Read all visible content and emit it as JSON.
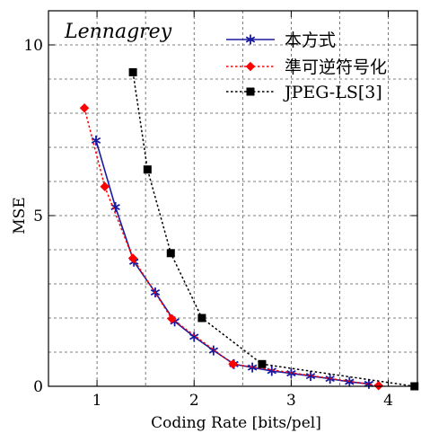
{
  "chart_data": {
    "type": "line",
    "annotation": "Lennagrey",
    "xlabel": "Coding Rate [bits/pel]",
    "ylabel": "MSE",
    "xlim": [
      0.5,
      4.3
    ],
    "ylim": [
      0,
      11
    ],
    "xticks": [
      1,
      2,
      3,
      4
    ],
    "yticks": [
      0,
      5,
      10
    ],
    "grid": true,
    "legend_position": "top-right",
    "series": [
      {
        "name": "本方式",
        "color": "#1a1aa0",
        "line_style": "solid",
        "marker": "asterisk",
        "x": [
          0.99,
          1.19,
          1.38,
          1.6,
          1.8,
          2.0,
          2.2,
          2.41,
          2.6,
          2.8,
          3.0,
          3.2,
          3.4,
          3.6,
          3.8
        ],
        "y": [
          7.2,
          5.25,
          3.65,
          2.75,
          1.9,
          1.45,
          1.05,
          0.65,
          0.55,
          0.45,
          0.38,
          0.3,
          0.22,
          0.13,
          0.07
        ]
      },
      {
        "name": "準可逆符号化",
        "color": "#ff0000",
        "line_style": "dotted",
        "marker": "diamond",
        "x": [
          0.87,
          1.08,
          1.37,
          1.77,
          2.4,
          3.9
        ],
        "y": [
          8.15,
          5.85,
          3.75,
          1.98,
          0.65,
          0.02
        ]
      },
      {
        "name": "JPEG-LS[3]",
        "color": "#000000",
        "line_style": "dotted",
        "marker": "square",
        "x": [
          1.37,
          1.52,
          1.76,
          2.08,
          2.7,
          4.27
        ],
        "y": [
          9.2,
          6.35,
          3.9,
          2.0,
          0.65,
          0.0
        ]
      }
    ]
  }
}
